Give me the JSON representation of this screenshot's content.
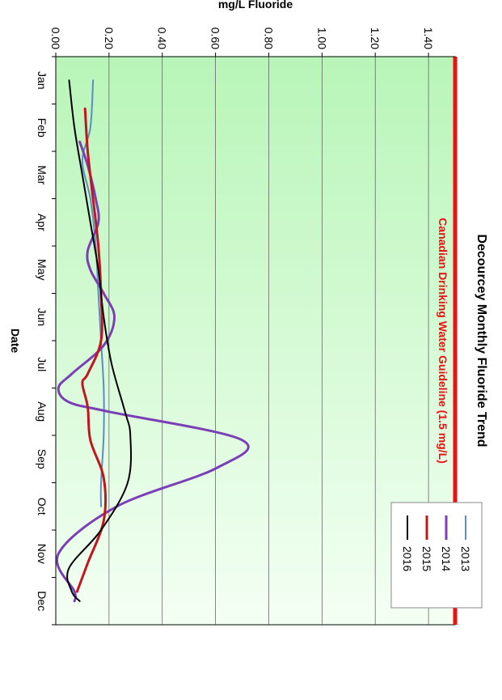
{
  "chart_data": {
    "type": "line",
    "title": "Decourcey Monthly Fluoride Trend",
    "xlabel": "Date",
    "ylabel": "mg/L Fluoride",
    "ylim": [
      0,
      1.5
    ],
    "yticks": [
      "0.00",
      "0.20",
      "0.40",
      "0.60",
      "0.80",
      "1.00",
      "1.20",
      "1.40"
    ],
    "categories": [
      "Jan",
      "Feb",
      "Mar",
      "Apr",
      "May",
      "Jun",
      "Jul",
      "Aug",
      "Sep",
      "Oct",
      "Nov",
      "Dec"
    ],
    "guideline": {
      "label": "Canadian Drinking Water Guideline (1.5 mg/L)",
      "value": 1.5,
      "color": "#ee1111"
    },
    "legend_position": "top-right",
    "series": [
      {
        "name": "2013",
        "color": "#5b8cc6",
        "width": 2,
        "points": [
          [
            1,
            0.14
          ],
          [
            2,
            0.13
          ],
          [
            2.7,
            0.1
          ],
          [
            3.5,
            0.13
          ],
          [
            4.5,
            0.15
          ],
          [
            5.5,
            0.16
          ],
          [
            6.5,
            0.17
          ],
          [
            7.5,
            0.18
          ],
          [
            8.5,
            0.18
          ],
          [
            9.5,
            0.17
          ],
          [
            10,
            0.17
          ]
        ]
      },
      {
        "name": "2014",
        "color": "#7b3fb5",
        "width": 3,
        "points": [
          [
            2.3,
            0.09
          ],
          [
            2.8,
            0.12
          ],
          [
            3.5,
            0.15
          ],
          [
            4,
            0.16
          ],
          [
            4.6,
            0.12
          ],
          [
            5,
            0.13
          ],
          [
            5.5,
            0.18
          ],
          [
            6,
            0.22
          ],
          [
            6.6,
            0.18
          ],
          [
            7.2,
            0.06
          ],
          [
            7.5,
            0.01
          ],
          [
            7.8,
            0.05
          ],
          [
            8,
            0.2
          ],
          [
            8.6,
            0.7
          ],
          [
            9.2,
            0.6
          ],
          [
            10,
            0.23
          ],
          [
            11,
            0.01
          ],
          [
            11.8,
            0.07
          ],
          [
            12,
            0.07
          ]
        ]
      },
      {
        "name": "2015",
        "color": "#c0161c",
        "width": 3,
        "points": [
          [
            1.6,
            0.11
          ],
          [
            2.5,
            0.12
          ],
          [
            3.5,
            0.14
          ],
          [
            4.5,
            0.16
          ],
          [
            5.5,
            0.17
          ],
          [
            6.5,
            0.17
          ],
          [
            7.2,
            0.12
          ],
          [
            7.4,
            0.1
          ],
          [
            7.9,
            0.12
          ],
          [
            8.6,
            0.13
          ],
          [
            9.4,
            0.18
          ],
          [
            10.3,
            0.18
          ],
          [
            11.2,
            0.12
          ],
          [
            11.8,
            0.08
          ]
        ]
      },
      {
        "name": "2016",
        "color": "#000000",
        "width": 2,
        "points": [
          [
            1,
            0.05
          ],
          [
            2,
            0.07
          ],
          [
            3,
            0.1
          ],
          [
            4,
            0.13
          ],
          [
            5,
            0.16
          ],
          [
            6,
            0.18
          ],
          [
            7,
            0.21
          ],
          [
            8,
            0.26
          ],
          [
            8.5,
            0.28
          ],
          [
            9.5,
            0.27
          ],
          [
            10.5,
            0.17
          ],
          [
            11.3,
            0.05
          ],
          [
            11.8,
            0.06
          ],
          [
            12,
            0.09
          ]
        ]
      }
    ]
  }
}
